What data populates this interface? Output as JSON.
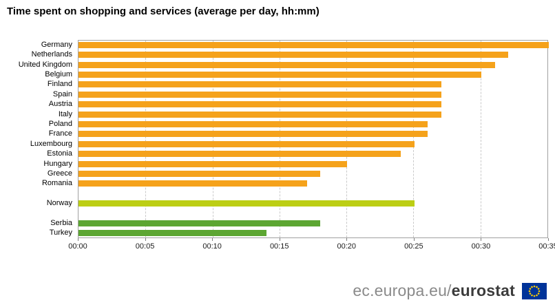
{
  "title": "Time spent on shopping and services (average per day, hh:mm)",
  "footer": {
    "url_prefix": "ec.europa.eu/",
    "brand": "eurostat",
    "flag_icon": "eu-flag-icon",
    "flag_colors": {
      "field": "#003399",
      "stars": "#ffcc00"
    }
  },
  "chart_data": {
    "type": "bar",
    "orientation": "horizontal",
    "title": "Time spent on shopping and services (average per day, hh:mm)",
    "xlabel": "",
    "ylabel": "",
    "xlim_minutes": [
      0,
      35
    ],
    "x_ticks": [
      "00:00",
      "00:05",
      "00:10",
      "00:15",
      "00:20",
      "00:25",
      "00:30",
      "00:35"
    ],
    "grid": "vertical-dashed",
    "legend": "none",
    "colors": {
      "eu": "#f5a21b",
      "efta": "#bcce14",
      "candidate": "#5ca632"
    },
    "categories": [
      "Germany",
      "Netherlands",
      "United Kingdom",
      "Belgium",
      "Finland",
      "Spain",
      "Austria",
      "Italy",
      "Poland",
      "France",
      "Luxembourg",
      "Estonia",
      "Hungary",
      "Greece",
      "Romania",
      "Norway",
      "Serbia",
      "Turkey"
    ],
    "values_hhmm": [
      "00:35",
      "00:32",
      "00:31",
      "00:30",
      "00:27",
      "00:27",
      "00:27",
      "00:27",
      "00:26",
      "00:26",
      "00:25",
      "00:24",
      "00:20",
      "00:18",
      "00:17",
      "00:25",
      "00:18",
      "00:14"
    ],
    "values_minutes": [
      35,
      32,
      31,
      30,
      27,
      27,
      27,
      27,
      26,
      26,
      25,
      24,
      20,
      18,
      17,
      25,
      18,
      14
    ],
    "rows": [
      {
        "label": "Germany",
        "hhmm": "00:35",
        "minutes": 35,
        "group": "eu"
      },
      {
        "label": "Netherlands",
        "hhmm": "00:32",
        "minutes": 32,
        "group": "eu"
      },
      {
        "label": "United Kingdom",
        "hhmm": "00:31",
        "minutes": 31,
        "group": "eu"
      },
      {
        "label": "Belgium",
        "hhmm": "00:30",
        "minutes": 30,
        "group": "eu"
      },
      {
        "label": "Finland",
        "hhmm": "00:27",
        "minutes": 27,
        "group": "eu"
      },
      {
        "label": "Spain",
        "hhmm": "00:27",
        "minutes": 27,
        "group": "eu"
      },
      {
        "label": "Austria",
        "hhmm": "00:27",
        "minutes": 27,
        "group": "eu"
      },
      {
        "label": "Italy",
        "hhmm": "00:27",
        "minutes": 27,
        "group": "eu"
      },
      {
        "label": "Poland",
        "hhmm": "00:26",
        "minutes": 26,
        "group": "eu"
      },
      {
        "label": "France",
        "hhmm": "00:26",
        "minutes": 26,
        "group": "eu"
      },
      {
        "label": "Luxembourg",
        "hhmm": "00:25",
        "minutes": 25,
        "group": "eu"
      },
      {
        "label": "Estonia",
        "hhmm": "00:24",
        "minutes": 24,
        "group": "eu"
      },
      {
        "label": "Hungary",
        "hhmm": "00:20",
        "minutes": 20,
        "group": "eu"
      },
      {
        "label": "Greece",
        "hhmm": "00:18",
        "minutes": 18,
        "group": "eu"
      },
      {
        "label": "Romania",
        "hhmm": "00:17",
        "minutes": 17,
        "group": "eu"
      },
      {
        "label": "",
        "hhmm": null,
        "minutes": null,
        "group": "spacer"
      },
      {
        "label": "Norway",
        "hhmm": "00:25",
        "minutes": 25,
        "group": "efta"
      },
      {
        "label": "",
        "hhmm": null,
        "minutes": null,
        "group": "spacer"
      },
      {
        "label": "Serbia",
        "hhmm": "00:18",
        "minutes": 18,
        "group": "candidate"
      },
      {
        "label": "Turkey",
        "hhmm": "00:14",
        "minutes": 14,
        "group": "candidate"
      }
    ]
  }
}
